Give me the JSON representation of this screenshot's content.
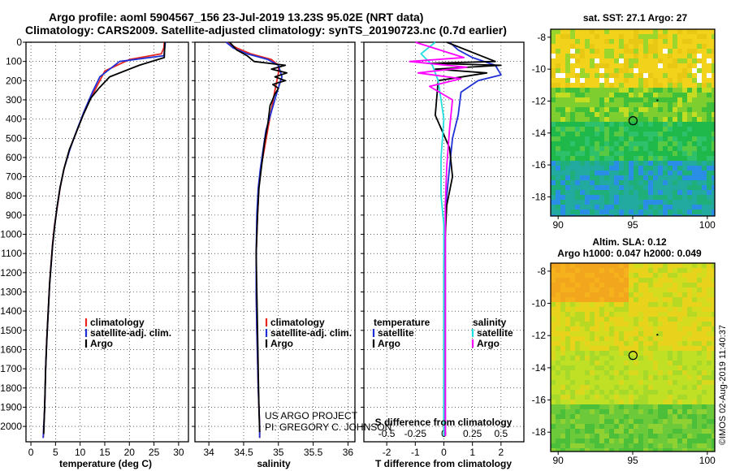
{
  "title_lines": [
    "Argo profile: aoml 5904567_156 23-Jul-2019 13.23S 95.02E (NRT data)",
    "Climatology: CARS2009. Satellite-adjusted climatology: synTS_20190723.nc (0.7d earlier)"
  ],
  "credit_lines": [
    "US ARGO PROJECT",
    "PI: GREGORY C. JOHNSON"
  ],
  "timestamp": "©IMOS 02-Aug-2019 11:40:37",
  "chart_data": [
    {
      "id": "temperature",
      "type": "line",
      "xlabel": "temperature (deg C)",
      "ylabel": "",
      "xlim": [
        -1,
        32
      ],
      "ylim": [
        2080,
        0
      ],
      "xticks": [
        "0",
        "5",
        "10",
        "15",
        "20",
        "25",
        "30"
      ],
      "xtick_values": [
        0,
        5,
        10,
        15,
        20,
        25,
        30
      ],
      "yticks": [
        "0",
        "100",
        "200",
        "300",
        "400",
        "500",
        "600",
        "700",
        "800",
        "900",
        "1000",
        "1100",
        "1200",
        "1300",
        "1400",
        "1500",
        "1600",
        "1700",
        "1800",
        "1900",
        "2000"
      ],
      "ytick_values": [
        0,
        100,
        200,
        300,
        400,
        500,
        600,
        700,
        800,
        900,
        1000,
        1100,
        1200,
        1300,
        1400,
        1500,
        1600,
        1700,
        1800,
        1900,
        2000
      ],
      "legend": [
        {
          "label": "climatology",
          "color": "#e8251f"
        },
        {
          "label": "satellite-adj. clim.",
          "color": "#1f2fd6"
        },
        {
          "label": "Argo",
          "color": "#000000"
        }
      ],
      "series": [
        {
          "name": "climatology",
          "color": "#e8251f",
          "x": [
            27.1,
            27.0,
            26.5,
            20,
            15,
            13,
            11,
            9.5,
            8,
            6.8,
            6,
            5.4,
            4.8,
            4.4,
            4.1,
            3.8,
            3.6,
            3.4,
            3.2,
            3.0,
            2.8,
            2.5
          ],
          "y": [
            0,
            30,
            60,
            90,
            150,
            250,
            350,
            450,
            550,
            650,
            750,
            850,
            950,
            1050,
            1150,
            1250,
            1350,
            1450,
            1550,
            1700,
            1900,
            2060
          ]
        },
        {
          "name": "satellite-adj. clim.",
          "color": "#1f2fd6",
          "x": [
            27.3,
            27.2,
            27.0,
            18,
            14,
            12.5,
            10.8,
            9.3,
            7.9,
            6.7,
            5.9,
            5.3,
            4.8,
            4.4,
            4.1,
            3.8,
            3.6,
            3.4,
            3.2,
            3.0,
            2.8,
            2.5
          ],
          "y": [
            0,
            30,
            70,
            100,
            180,
            260,
            360,
            460,
            560,
            660,
            760,
            860,
            960,
            1060,
            1160,
            1260,
            1360,
            1460,
            1560,
            1700,
            1900,
            2060
          ]
        },
        {
          "name": "Argo",
          "color": "#000000",
          "x": [
            27.2,
            27.1,
            22,
            16,
            13.8,
            12.2,
            10.6,
            9.2,
            7.8,
            6.7,
            5.9,
            5.3,
            4.8,
            4.4,
            4.1,
            3.8,
            3.6,
            3.4,
            3.2,
            3.0,
            2.8,
            2.6
          ],
          "y": [
            0,
            80,
            120,
            180,
            240,
            290,
            380,
            470,
            560,
            660,
            760,
            860,
            960,
            1060,
            1160,
            1260,
            1360,
            1460,
            1560,
            1700,
            1900,
            2040
          ]
        }
      ]
    },
    {
      "id": "salinity",
      "type": "line",
      "xlabel": "salinity",
      "xlim": [
        33.8,
        36.1
      ],
      "ylim": [
        2080,
        0
      ],
      "xticks": [
        "34",
        "34.5",
        "35",
        "35.5",
        "36"
      ],
      "xtick_values": [
        34,
        34.5,
        35,
        35.5,
        36
      ],
      "legend": [
        {
          "label": "climatology",
          "color": "#e8251f"
        },
        {
          "label": "satellite-adj. clim.",
          "color": "#1f2fd6"
        },
        {
          "label": "Argo",
          "color": "#000000"
        }
      ],
      "series": [
        {
          "name": "climatology",
          "color": "#e8251f",
          "x": [
            34.25,
            34.4,
            34.6,
            34.9,
            35.0,
            35.0,
            34.95,
            34.9,
            34.85,
            34.8,
            34.75,
            34.72,
            34.7,
            34.68,
            34.68,
            34.69,
            34.7,
            34.71,
            34.72,
            34.73,
            34.73
          ],
          "y": [
            0,
            30,
            60,
            90,
            120,
            160,
            250,
            350,
            450,
            550,
            650,
            750,
            900,
            1100,
            1300,
            1500,
            1650,
            1800,
            1900,
            2000,
            2060
          ]
        },
        {
          "name": "satellite-adj. clim.",
          "color": "#1f2fd6",
          "x": [
            34.25,
            34.35,
            34.55,
            34.85,
            35.0,
            35.05,
            34.98,
            34.9,
            34.82,
            34.78,
            34.74,
            34.71,
            34.69,
            34.68,
            34.68,
            34.69,
            34.7,
            34.71,
            34.72,
            34.73,
            34.73
          ],
          "y": [
            0,
            30,
            60,
            90,
            120,
            180,
            260,
            360,
            460,
            560,
            660,
            760,
            900,
            1100,
            1300,
            1500,
            1650,
            1800,
            1900,
            2000,
            2060
          ]
        },
        {
          "name": "Argo",
          "color": "#000000",
          "x": [
            34.3,
            34.4,
            34.55,
            34.65,
            35.1,
            34.9,
            35.12,
            34.95,
            35.1,
            34.92,
            35.0,
            34.95,
            34.88,
            34.85,
            34.8,
            34.76,
            34.72,
            34.7,
            34.68,
            34.69,
            34.7,
            34.71,
            34.72,
            34.73
          ],
          "y": [
            0,
            40,
            70,
            100,
            120,
            140,
            160,
            180,
            200,
            220,
            240,
            270,
            330,
            420,
            520,
            640,
            760,
            900,
            1100,
            1300,
            1500,
            1700,
            1900,
            2030
          ]
        }
      ]
    },
    {
      "id": "difference",
      "type": "line",
      "xlabel": "T difference from climatology",
      "top_label": "S difference from climatology",
      "xlim": [
        -2.8,
        2.8
      ],
      "ylim": [
        2080,
        0
      ],
      "xticks": [
        "-2",
        "-1",
        "0",
        "1",
        "2"
      ],
      "xtick_values": [
        -2,
        -1,
        0,
        1,
        2
      ],
      "sticks": [
        "-0.5",
        "-0.25",
        "0",
        "0.25",
        "0.5"
      ],
      "stick_values": [
        -2,
        -1,
        0,
        1,
        2
      ],
      "legend_left_title": "temperature",
      "legend_right_title": "salinity",
      "legend_left": [
        {
          "label": "satellite",
          "color": "#1f2fd6"
        },
        {
          "label": "Argo",
          "color": "#000000"
        }
      ],
      "legend_right": [
        {
          "label": "satellite",
          "color": "#22e0e0"
        },
        {
          "label": "Argo",
          "color": "#ff00ff"
        }
      ],
      "series": [
        {
          "name": "T satellite",
          "color": "#1f2fd6",
          "x": [
            0.2,
            0.5,
            1.0,
            1.8,
            2.0,
            1.2,
            0.6,
            0.5,
            0.3,
            0.2,
            0.1,
            0.05,
            0.05,
            0.05,
            0.05,
            0.05,
            0.05,
            0.05,
            0.05,
            0.05
          ],
          "y": [
            0,
            40,
            80,
            120,
            170,
            200,
            260,
            380,
            500,
            650,
            800,
            950,
            1100,
            1250,
            1400,
            1550,
            1700,
            1850,
            1950,
            2050
          ]
        },
        {
          "name": "T Argo",
          "color": "#000000",
          "x": [
            0.1,
            1.8,
            -0.5,
            2.0,
            -0.3,
            1.5,
            -0.2,
            -0.3,
            0.2,
            0.3,
            0.1,
            0.05,
            0.0,
            0.0,
            0.0,
            0.0,
            0.0,
            0.0,
            0.0,
            0.0
          ],
          "y": [
            0,
            100,
            110,
            120,
            140,
            160,
            200,
            380,
            550,
            700,
            850,
            1000,
            1150,
            1300,
            1450,
            1600,
            1750,
            1900,
            2000,
            2050
          ]
        },
        {
          "name": "S satellite",
          "color": "#22e0e0",
          "x": [
            -0.3,
            -0.8,
            -0.4,
            -0.2,
            0.0,
            -0.1,
            -0.1,
            0.0,
            0.0,
            0.0,
            0.0,
            0.0,
            0.0,
            0.0,
            0.0,
            0.0
          ],
          "y": [
            0,
            60,
            120,
            200,
            400,
            600,
            800,
            950,
            1100,
            1250,
            1400,
            1550,
            1700,
            1850,
            1950,
            2050
          ]
        },
        {
          "name": "S Argo",
          "color": "#ff00ff",
          "x": [
            -1.0,
            0.7,
            -1.2,
            0.8,
            -0.9,
            0.6,
            -0.5,
            0.3,
            0.2,
            0.1,
            0.05,
            0.05,
            0.05,
            0.05,
            0.05,
            0.05
          ],
          "y": [
            0,
            80,
            100,
            130,
            160,
            190,
            230,
            300,
            450,
            650,
            850,
            1050,
            1250,
            1500,
            1800,
            2050
          ]
        }
      ]
    }
  ],
  "maps": [
    {
      "id": "sst-map",
      "title": "sat. SST: 27.1 Argo: 27",
      "xticks": [
        "90",
        "95",
        "100"
      ],
      "yticks": [
        "-8",
        "-10",
        "-12",
        "-14",
        "-16",
        "-18"
      ],
      "xlim": [
        89.5,
        100.5
      ],
      "ylim": [
        -19.2,
        -7.5
      ],
      "argo_lon": 95.02,
      "argo_lat": -13.23
    },
    {
      "id": "sla-map",
      "title_lines": [
        "Altim. SLA: 0.12",
        "Argo h1000: 0.047 h2000: 0.049"
      ],
      "xticks": [
        "90",
        "95",
        "100"
      ],
      "yticks": [
        "-8",
        "-10",
        "-12",
        "-14",
        "-16",
        "-18"
      ],
      "xlim": [
        89.5,
        100.5
      ],
      "ylim": [
        -19.2,
        -7.5
      ],
      "argo_lon": 95.02,
      "argo_lat": -13.23
    }
  ]
}
